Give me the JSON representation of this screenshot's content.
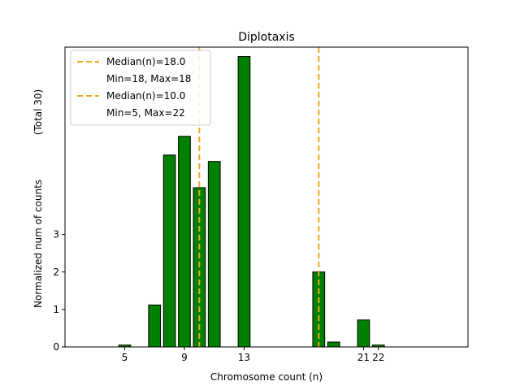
{
  "chart_data": {
    "type": "bar",
    "title": "Diplotaxis",
    "xlabel": "Chromosome count (n)",
    "ylabel": "Normalized num of counts",
    "ylabel_note": "(Total 30)",
    "xlim": [
      1,
      28
    ],
    "ylim": [
      0,
      8
    ],
    "xticks": [
      5,
      9,
      13,
      21,
      22
    ],
    "yticks": [
      0,
      1,
      2,
      3
    ],
    "bars": [
      {
        "x": 5,
        "value": 0.05
      },
      {
        "x": 7,
        "value": 1.12
      },
      {
        "x": 8,
        "value": 5.12
      },
      {
        "x": 9,
        "value": 5.62
      },
      {
        "x": 10,
        "value": 4.25
      },
      {
        "x": 11,
        "value": 4.95
      },
      {
        "x": 13,
        "value": 7.75
      },
      {
        "x": 18,
        "value": 2.0
      },
      {
        "x": 19,
        "value": 0.13
      },
      {
        "x": 21,
        "value": 0.72
      },
      {
        "x": 22,
        "value": 0.05
      }
    ],
    "bar_color": "#008000",
    "median_lines": [
      {
        "x": 18.0,
        "label": "Median(n)=18.0",
        "range_label": "Min=18, Max=18",
        "color": "#f0a81e"
      },
      {
        "x": 10.0,
        "label": "Median(n)=10.0",
        "range_label": "Min=5, Max=22",
        "color": "#f0a81e"
      }
    ],
    "legend_position": "top-left",
    "grid": false
  }
}
